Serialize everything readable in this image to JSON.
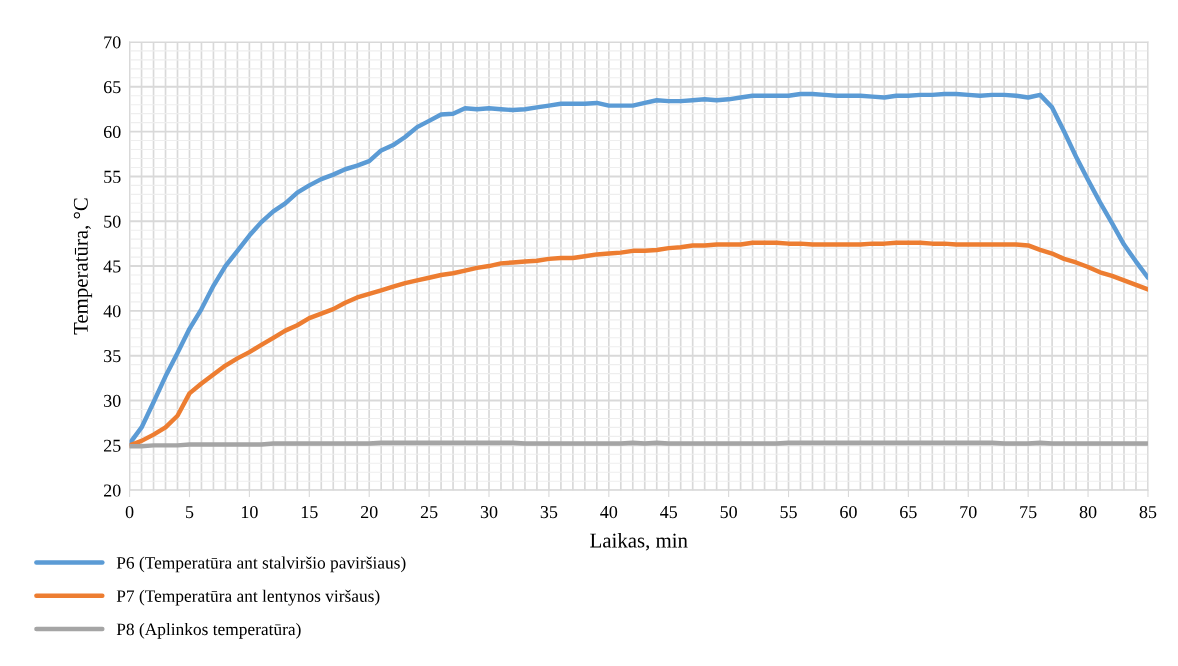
{
  "chart_data": {
    "type": "line",
    "xlabel": "Laikas, min",
    "ylabel": "Temperatūra, °C",
    "xlim": [
      0,
      85
    ],
    "xticks": [
      0,
      5,
      10,
      15,
      20,
      25,
      30,
      35,
      40,
      45,
      50,
      55,
      60,
      65,
      70,
      75,
      80,
      85
    ],
    "ylim": [
      20,
      70
    ],
    "yticks": [
      20,
      25,
      30,
      35,
      40,
      45,
      50,
      55,
      60,
      65,
      70
    ],
    "grid": true,
    "legend": "bottom left",
    "marker": "none",
    "line_style": "solid",
    "x": [
      0,
      1,
      2,
      3,
      4,
      5,
      6,
      7,
      8,
      9,
      10,
      11,
      12,
      13,
      14,
      15,
      16,
      17,
      18,
      19,
      20,
      21,
      22,
      23,
      24,
      25,
      26,
      27,
      28,
      29,
      30,
      31,
      32,
      33,
      34,
      35,
      36,
      37,
      38,
      39,
      40,
      41,
      42,
      43,
      44,
      45,
      46,
      47,
      48,
      49,
      50,
      51,
      52,
      53,
      54,
      55,
      56,
      57,
      58,
      59,
      60,
      61,
      62,
      63,
      64,
      65,
      66,
      67,
      68,
      69,
      70,
      71,
      72,
      73,
      74,
      75,
      76,
      77,
      78,
      79,
      80,
      81,
      82,
      83,
      84,
      85
    ],
    "series": [
      {
        "name": "P6 (Temperatūra ant stalviršio paviršiaus)",
        "color": "#5b9bd5",
        "values": [
          25.2,
          27,
          29.8,
          32.7,
          35.3,
          38,
          40.2,
          42.8,
          45,
          46.7,
          48.4,
          49.9,
          51.1,
          52,
          53.2,
          54,
          54.7,
          55.2,
          55.8,
          56.2,
          56.7,
          57.9,
          58.5,
          59.4,
          60.5,
          61.2,
          61.9,
          62,
          62.6,
          62.5,
          62.6,
          62.5,
          62.4,
          62.5,
          62.7,
          62.9,
          63.1,
          63.1,
          63.1,
          63.2,
          62.9,
          62.9,
          62.9,
          63.2,
          63.5,
          63.4,
          63.4,
          63.5,
          63.6,
          63.5,
          63.6,
          63.8,
          64,
          64,
          64,
          64,
          64.2,
          64.2,
          64.1,
          64,
          64,
          64,
          63.9,
          63.8,
          64,
          64,
          64.1,
          64.1,
          64.2,
          64.2,
          64.1,
          64,
          64.1,
          64.1,
          64,
          63.8,
          64.1,
          62.7,
          60,
          57.2,
          54.6,
          52.1,
          49.8,
          47.4,
          45.5,
          43.7
        ]
      },
      {
        "name": "P7 (Temperatūra ant lentynos viršaus)",
        "color": "#ed7d31",
        "values": [
          25,
          25.5,
          26.2,
          27,
          28.3,
          30.8,
          31.9,
          32.9,
          33.9,
          34.7,
          35.4,
          36.2,
          37,
          37.8,
          38.4,
          39.2,
          39.7,
          40.2,
          40.9,
          41.5,
          41.9,
          42.3,
          42.7,
          43.1,
          43.4,
          43.7,
          44,
          44.2,
          44.5,
          44.8,
          45,
          45.3,
          45.4,
          45.5,
          45.6,
          45.8,
          45.9,
          45.9,
          46.1,
          46.3,
          46.4,
          46.5,
          46.7,
          46.7,
          46.8,
          47,
          47.1,
          47.3,
          47.3,
          47.4,
          47.4,
          47.4,
          47.6,
          47.6,
          47.6,
          47.5,
          47.5,
          47.4,
          47.4,
          47.4,
          47.4,
          47.4,
          47.5,
          47.5,
          47.6,
          47.6,
          47.6,
          47.5,
          47.5,
          47.4,
          47.4,
          47.4,
          47.4,
          47.4,
          47.4,
          47.3,
          46.8,
          46.4,
          45.8,
          45.4,
          44.9,
          44.3,
          43.9,
          43.4,
          42.9,
          42.4
        ]
      },
      {
        "name": "P8 (Aplinkos temperatūra)",
        "color": "#a5a5a5",
        "values": [
          24.9,
          24.9,
          25,
          25,
          25,
          25.1,
          25.1,
          25.1,
          25.1,
          25.1,
          25.1,
          25.1,
          25.2,
          25.2,
          25.2,
          25.2,
          25.2,
          25.2,
          25.2,
          25.2,
          25.2,
          25.3,
          25.3,
          25.3,
          25.3,
          25.3,
          25.3,
          25.3,
          25.3,
          25.3,
          25.3,
          25.3,
          25.3,
          25.2,
          25.2,
          25.2,
          25.2,
          25.2,
          25.2,
          25.2,
          25.2,
          25.2,
          25.3,
          25.2,
          25.3,
          25.2,
          25.2,
          25.2,
          25.2,
          25.2,
          25.2,
          25.2,
          25.2,
          25.2,
          25.2,
          25.3,
          25.3,
          25.3,
          25.3,
          25.3,
          25.3,
          25.3,
          25.3,
          25.3,
          25.3,
          25.3,
          25.3,
          25.3,
          25.3,
          25.3,
          25.3,
          25.3,
          25.3,
          25.2,
          25.2,
          25.2,
          25.3,
          25.2,
          25.2,
          25.2,
          25.2,
          25.2,
          25.2,
          25.2,
          25.2,
          25.2
        ]
      }
    ]
  }
}
